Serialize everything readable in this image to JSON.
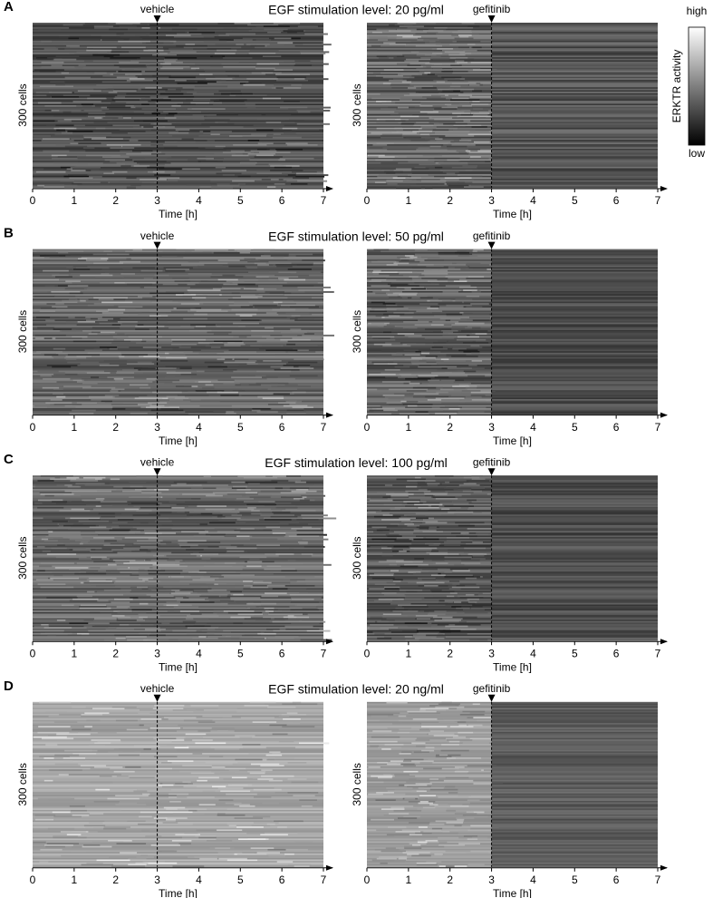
{
  "chart_data": {
    "type": "heatmap",
    "xlim": [
      0,
      7
    ],
    "xticks": [
      0,
      1,
      2,
      3,
      4,
      5,
      6,
      7
    ],
    "xlabel": "Time [h]",
    "ylabel": "300 cells",
    "marker_x": 3,
    "title_color": "#9b1c1c",
    "colorbar": {
      "label": "ERKTR activity",
      "high": "high",
      "low": "low"
    },
    "treatments": [
      {
        "name": "vehicle",
        "color": "#1e8c1e"
      },
      {
        "name": "gefitinib",
        "color": "#2a2ae6"
      }
    ],
    "panels": [
      {
        "label": "A",
        "title": "EGF stimulation level: 20 pg/ml"
      },
      {
        "label": "B",
        "title": "EGF stimulation level: 50 pg/ml"
      },
      {
        "label": "C",
        "title": "EGF stimulation level: 100 pg/ml"
      },
      {
        "label": "D",
        "title": "EGF stimulation level: 20 ng/ml"
      }
    ]
  }
}
